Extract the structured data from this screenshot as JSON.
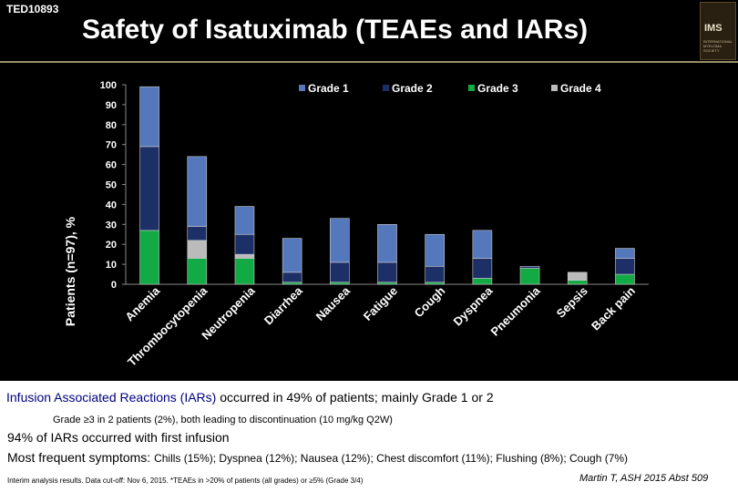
{
  "header": {
    "code": "TED10893",
    "title": "Safety of Isatuximab (TEAEs and IARs)",
    "logo_text": "IMS",
    "logo_sub": "INTERNATIONAL MYELOMA SOCIETY"
  },
  "chart_data": {
    "type": "bar",
    "stacked": true,
    "ylabel": "Patients (n=97), %",
    "ylim": [
      0,
      100
    ],
    "yticks": [
      0,
      10,
      20,
      30,
      40,
      50,
      60,
      70,
      80,
      90,
      100
    ],
    "grid": false,
    "legend_position": "top",
    "categories": [
      "Anemia",
      "Thrombocytopenia",
      "Neutropenia",
      "Diarrhea",
      "Nausea",
      "Fatigue",
      "Cough",
      "Dyspnea",
      "Pneumonia",
      "Sepsis",
      "Back pain"
    ],
    "series": [
      {
        "name": "Grade 1",
        "color": "#5577bb",
        "values": [
          30,
          35,
          14,
          17,
          22,
          19,
          16,
          14,
          0,
          0,
          5
        ]
      },
      {
        "name": "Grade 2",
        "color": "#1c2f66",
        "values": [
          42,
          7,
          10,
          5,
          10,
          10,
          8,
          10,
          1,
          0,
          8
        ]
      },
      {
        "name": "Grade 3",
        "color": "#11aa44",
        "values": [
          27,
          13,
          13,
          1,
          1,
          1,
          1,
          3,
          8,
          2,
          5
        ]
      },
      {
        "name": "Grade 4",
        "color": "#bbbbbb",
        "values": [
          0,
          9,
          2,
          0,
          0,
          0,
          0,
          0,
          0,
          4,
          0
        ]
      }
    ]
  },
  "text": {
    "line1_highlight": "Infusion Associated Reactions (IARs)",
    "line1_rest": " occurred in 49% of patients; mainly Grade 1 or 2",
    "line2": "Grade ≥3 in 2 patients (2%), both leading to discontinuation (10 mg/kg Q2W)",
    "line3": "94% of IARs occurred with first infusion",
    "line4_lead": "Most frequent symptoms: ",
    "line4_rest": "Chills (15%); Dyspnea (12%); Nausea (12%); Chest discomfort (11%); Flushing (8%); Cough (7%)",
    "footnote": "Interim analysis results. Data cut-off: Nov 6, 2015. *TEAEs in >20% of patients (all grades) or ≥5% (Grade 3/4)",
    "citation": "Martin T, ASH 2015 Abst 509"
  }
}
